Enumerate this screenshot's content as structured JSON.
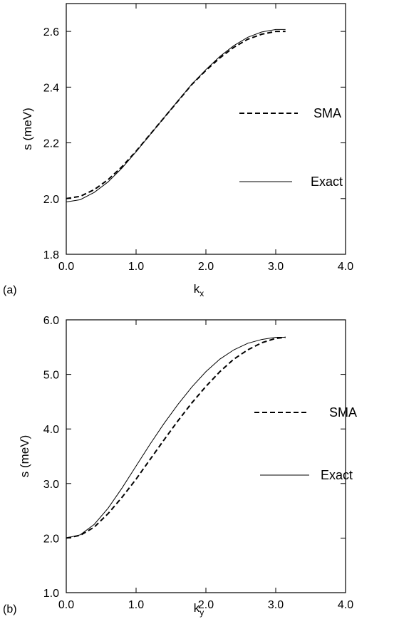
{
  "chart_data": [
    {
      "type": "line",
      "panel_label": "(a)",
      "xlabel": "k",
      "xlabel_sub": "x",
      "ylabel": "s (meV)",
      "xlim": [
        0.0,
        4.0
      ],
      "ylim": [
        1.8,
        2.7
      ],
      "xticks": [
        0.0,
        1.0,
        2.0,
        3.0,
        4.0
      ],
      "xtick_labels": [
        "0.0",
        "1.0",
        "2.0",
        "3.0",
        "4.0"
      ],
      "yticks": [
        1.8,
        2.0,
        2.2,
        2.4,
        2.6
      ],
      "ytick_labels": [
        "1.8",
        "2.0",
        "2.2",
        "2.4",
        "2.6"
      ],
      "grid": false,
      "legend_position": "right",
      "series": [
        {
          "name": "SMA",
          "style": "dashed",
          "x": [
            0.0,
            0.2,
            0.4,
            0.6,
            0.8,
            1.0,
            1.2,
            1.4,
            1.6,
            1.8,
            2.0,
            2.2,
            2.4,
            2.6,
            2.8,
            3.0,
            3.14
          ],
          "y": [
            2.0,
            2.008,
            2.032,
            2.068,
            2.115,
            2.17,
            2.23,
            2.29,
            2.35,
            2.41,
            2.46,
            2.505,
            2.543,
            2.572,
            2.59,
            2.6,
            2.6
          ]
        },
        {
          "name": "Exact",
          "style": "solid",
          "x": [
            0.0,
            0.2,
            0.4,
            0.6,
            0.8,
            1.0,
            1.2,
            1.4,
            1.6,
            1.8,
            2.0,
            2.2,
            2.4,
            2.6,
            2.8,
            3.0,
            3.14
          ],
          "y": [
            1.988,
            1.996,
            2.022,
            2.06,
            2.11,
            2.168,
            2.229,
            2.29,
            2.351,
            2.411,
            2.463,
            2.51,
            2.549,
            2.579,
            2.598,
            2.607,
            2.607
          ]
        }
      ]
    },
    {
      "type": "line",
      "panel_label": "(b)",
      "xlabel": "k",
      "xlabel_sub": "y",
      "ylabel": "s (meV)",
      "xlim": [
        0.0,
        4.0
      ],
      "ylim": [
        1.0,
        6.0
      ],
      "xticks": [
        0.0,
        1.0,
        2.0,
        3.0,
        4.0
      ],
      "xtick_labels": [
        "0.0",
        "1.0",
        "2.0",
        "3.0",
        "4.0"
      ],
      "yticks": [
        1.0,
        2.0,
        3.0,
        4.0,
        5.0,
        6.0
      ],
      "ytick_labels": [
        "1.0",
        "2.0",
        "3.0",
        "4.0",
        "5.0",
        "6.0"
      ],
      "grid": false,
      "legend_position": "right",
      "series": [
        {
          "name": "SMA",
          "style": "dashed",
          "x": [
            0.0,
            0.2,
            0.4,
            0.6,
            0.8,
            1.0,
            1.2,
            1.4,
            1.6,
            1.8,
            2.0,
            2.2,
            2.4,
            2.6,
            2.8,
            3.0,
            3.14
          ],
          "y": [
            2.0,
            2.05,
            2.2,
            2.45,
            2.75,
            3.08,
            3.44,
            3.8,
            4.15,
            4.48,
            4.78,
            5.05,
            5.28,
            5.45,
            5.58,
            5.66,
            5.68
          ]
        },
        {
          "name": "Exact",
          "style": "solid",
          "x": [
            0.0,
            0.2,
            0.4,
            0.6,
            0.8,
            1.0,
            1.2,
            1.4,
            1.6,
            1.8,
            2.0,
            2.2,
            2.4,
            2.6,
            2.8,
            3.0,
            3.14
          ],
          "y": [
            2.0,
            2.06,
            2.25,
            2.55,
            2.92,
            3.32,
            3.72,
            4.1,
            4.45,
            4.77,
            5.05,
            5.28,
            5.45,
            5.57,
            5.64,
            5.68,
            5.68
          ]
        }
      ]
    }
  ]
}
